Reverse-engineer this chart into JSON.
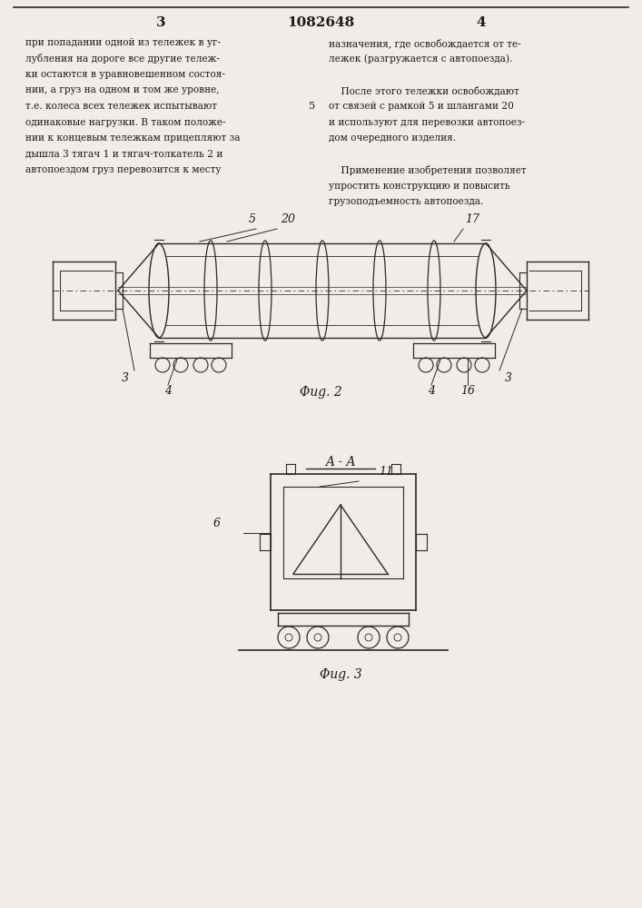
{
  "page_color": "#f0ede8",
  "text_color": "#1a1a1a",
  "line_color": "#2a2a2a",
  "header": {
    "left_num": "3",
    "center_num": "1082648",
    "right_num": "4"
  },
  "body_text_left": [
    "при попадании одной из тележек в уг-",
    "лубления на дороге все другие тележ-",
    "ки остаются в уравновешенном состоя-",
    "нии, а груз на одном и том же уровне,",
    "т.е. колеса всех тележек испытывают",
    "одинаковые нагрузки. В таком положе-",
    "нии к концевым тележкам прицепляют за",
    "дышла 3 тягач 1 и тягач-толкатель 2 и",
    "автопоездом груз перевозится к месту"
  ],
  "body_text_right": [
    "назначения, где освобождается от те-",
    "лежек (разгружается с автопоезда).",
    "",
    "    После этого тележки освобождают",
    "от связей с рамкой 5 и шлангами 20",
    "и используют для перевозки автопоез-",
    "дом очередного изделия.",
    "",
    "    Применение изобретения позволяет",
    "упростить конструкцию и повысить",
    "грузоподъемность автопоезда."
  ],
  "line_number_5": "5",
  "fig2_caption": "Φug. 2",
  "fig3_caption": "Φug. 3",
  "fig3_section_label": "A - A"
}
